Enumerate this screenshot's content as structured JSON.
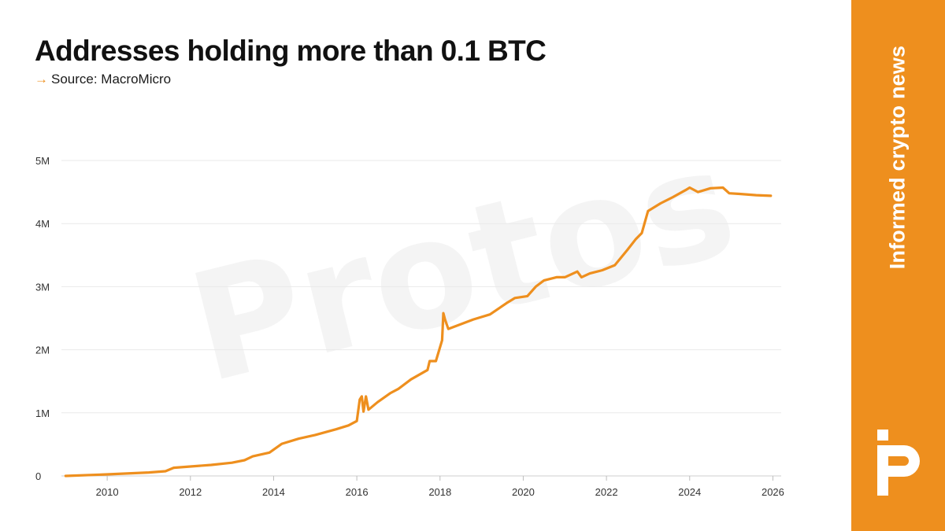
{
  "header": {
    "title": "Addresses holding more than 0.1 BTC",
    "source_arrow": "→",
    "source_text": "Source: MacroMicro"
  },
  "watermark": {
    "text": "Protos"
  },
  "side_panel": {
    "tagline": "Informed crypto news",
    "logo_icon": "protos-logo-icon"
  },
  "colors": {
    "accent": "#ee8f1e",
    "line": "#ee8f1e",
    "grid": "#e9e9e9"
  },
  "chart_data": {
    "type": "line",
    "title": "Addresses holding more than 0.1 BTC",
    "xlabel": "",
    "ylabel": "",
    "xlim": [
      2008.9,
      2026.2
    ],
    "ylim": [
      0,
      5000000
    ],
    "x_ticks": [
      2010,
      2012,
      2014,
      2016,
      2018,
      2020,
      2022,
      2024,
      2026
    ],
    "y_ticks": [
      {
        "value": 0,
        "label": "0"
      },
      {
        "value": 1000000,
        "label": "1M"
      },
      {
        "value": 2000000,
        "label": "2M"
      },
      {
        "value": 3000000,
        "label": "3M"
      },
      {
        "value": 4000000,
        "label": "4M"
      },
      {
        "value": 5000000,
        "label": "5M"
      }
    ],
    "grid": true,
    "legend": "none",
    "series": [
      {
        "points": [
          [
            2009.0,
            0
          ],
          [
            2010.0,
            25000
          ],
          [
            2011.0,
            55000
          ],
          [
            2011.4,
            75000
          ],
          [
            2011.6,
            130000
          ],
          [
            2012.0,
            150000
          ],
          [
            2012.5,
            175000
          ],
          [
            2013.0,
            210000
          ],
          [
            2013.3,
            250000
          ],
          [
            2013.5,
            310000
          ],
          [
            2013.9,
            370000
          ],
          [
            2014.2,
            510000
          ],
          [
            2014.6,
            590000
          ],
          [
            2015.0,
            650000
          ],
          [
            2015.5,
            740000
          ],
          [
            2015.8,
            800000
          ],
          [
            2016.0,
            870000
          ],
          [
            2016.07,
            1210000
          ],
          [
            2016.12,
            1260000
          ],
          [
            2016.16,
            1020000
          ],
          [
            2016.22,
            1260000
          ],
          [
            2016.28,
            1050000
          ],
          [
            2016.5,
            1170000
          ],
          [
            2016.8,
            1310000
          ],
          [
            2017.0,
            1380000
          ],
          [
            2017.3,
            1530000
          ],
          [
            2017.7,
            1680000
          ],
          [
            2017.75,
            1820000
          ],
          [
            2017.9,
            1820000
          ],
          [
            2018.05,
            2150000
          ],
          [
            2018.08,
            2580000
          ],
          [
            2018.12,
            2480000
          ],
          [
            2018.2,
            2330000
          ],
          [
            2018.4,
            2380000
          ],
          [
            2018.8,
            2480000
          ],
          [
            2019.2,
            2560000
          ],
          [
            2019.6,
            2740000
          ],
          [
            2019.8,
            2820000
          ],
          [
            2020.1,
            2850000
          ],
          [
            2020.3,
            3000000
          ],
          [
            2020.5,
            3100000
          ],
          [
            2020.8,
            3150000
          ],
          [
            2021.0,
            3150000
          ],
          [
            2021.3,
            3240000
          ],
          [
            2021.4,
            3150000
          ],
          [
            2021.6,
            3210000
          ],
          [
            2021.9,
            3260000
          ],
          [
            2022.2,
            3340000
          ],
          [
            2022.5,
            3580000
          ],
          [
            2022.7,
            3750000
          ],
          [
            2022.85,
            3850000
          ],
          [
            2023.0,
            4200000
          ],
          [
            2023.3,
            4320000
          ],
          [
            2023.6,
            4420000
          ],
          [
            2023.9,
            4530000
          ],
          [
            2024.0,
            4570000
          ],
          [
            2024.2,
            4500000
          ],
          [
            2024.5,
            4560000
          ],
          [
            2024.8,
            4570000
          ],
          [
            2024.95,
            4480000
          ],
          [
            2025.2,
            4470000
          ],
          [
            2025.6,
            4450000
          ],
          [
            2025.95,
            4440000
          ]
        ]
      }
    ]
  }
}
